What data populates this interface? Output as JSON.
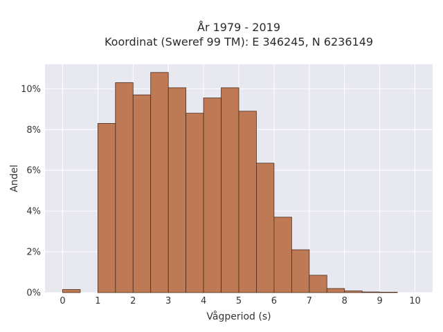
{
  "chart_data": {
    "type": "bar",
    "title_line1": "År 1979 - 2019",
    "title_line2": "Koordinat (Sweref 99 TM): E 346245, N 6236149",
    "xlabel": "Vågperiod (s)",
    "ylabel": "Andel",
    "xlim": [
      -0.5,
      10.5
    ],
    "ylim": [
      0,
      11.2
    ],
    "x_ticks": [
      0,
      1,
      2,
      3,
      4,
      5,
      6,
      7,
      8,
      9,
      10
    ],
    "y_ticks": [
      {
        "value": 0,
        "label": "0%"
      },
      {
        "value": 2,
        "label": "2%"
      },
      {
        "value": 4,
        "label": "4%"
      },
      {
        "value": 6,
        "label": "6%"
      },
      {
        "value": 8,
        "label": "8%"
      },
      {
        "value": 10,
        "label": "10%"
      }
    ],
    "bin_width": 0.5,
    "bins": [
      {
        "x0": 0.0,
        "value": 0.15
      },
      {
        "x0": 0.5,
        "value": 0.0
      },
      {
        "x0": 1.0,
        "value": 8.3
      },
      {
        "x0": 1.5,
        "value": 10.3
      },
      {
        "x0": 2.0,
        "value": 9.7
      },
      {
        "x0": 2.5,
        "value": 10.8
      },
      {
        "x0": 3.0,
        "value": 10.05
      },
      {
        "x0": 3.5,
        "value": 8.8
      },
      {
        "x0": 4.0,
        "value": 9.55
      },
      {
        "x0": 4.5,
        "value": 10.05
      },
      {
        "x0": 5.0,
        "value": 8.9
      },
      {
        "x0": 5.5,
        "value": 6.35
      },
      {
        "x0": 6.0,
        "value": 3.7
      },
      {
        "x0": 6.5,
        "value": 2.1
      },
      {
        "x0": 7.0,
        "value": 0.85
      },
      {
        "x0": 7.5,
        "value": 0.2
      },
      {
        "x0": 8.0,
        "value": 0.08
      },
      {
        "x0": 8.5,
        "value": 0.03
      },
      {
        "x0": 9.0,
        "value": 0.02
      }
    ],
    "grid": true,
    "colors": {
      "bar_fill": "#bd7a55",
      "bar_stroke": "#4a2a18",
      "plot_bg": "#e8e8f0",
      "grid": "#ffffff"
    }
  }
}
